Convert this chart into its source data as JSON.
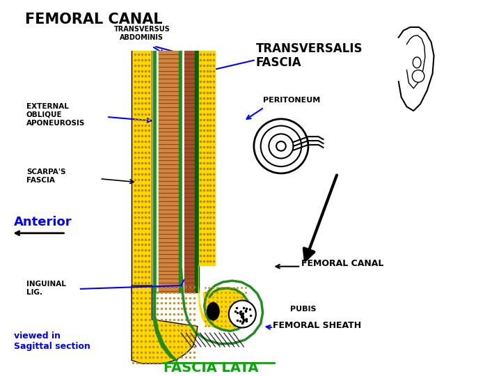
{
  "title": "FEMORAL CANAL",
  "background_color": "#ffffff",
  "labels": {
    "transversus": "TRANSVERSUS\nABDOMINIS",
    "transversalis": "TRANSVERSALIS\nFASCIA",
    "external_oblique": "EXTERNAL\nOBLIQUE\nAPONEUROSIS",
    "peritoneum": "PERITONEUM",
    "scarpas": "SCARPA'S\nFASCIA",
    "anterior": "Anterior",
    "femoral_canal": "FEMORAL CANAL",
    "inguinal": "INGUINAL\nLIG.",
    "pubis": "PUBIS",
    "femoral_sheath": "FEMORAL SHEATH",
    "viewed_in": "viewed in\nSagittal section",
    "fascia_lata": "FASCIA LATA"
  },
  "colors": {
    "yellow_fat": "#FFD700",
    "green_fascia": "#228B22",
    "brown_muscle": "#CD853F",
    "dark_green": "#006400",
    "blue_label": "#0000FF",
    "black": "#000000",
    "white": "#FFFFFF",
    "red_brown": "#A0522D",
    "dark_yellow": "#B8860B",
    "green_lata": "#00AA00"
  }
}
